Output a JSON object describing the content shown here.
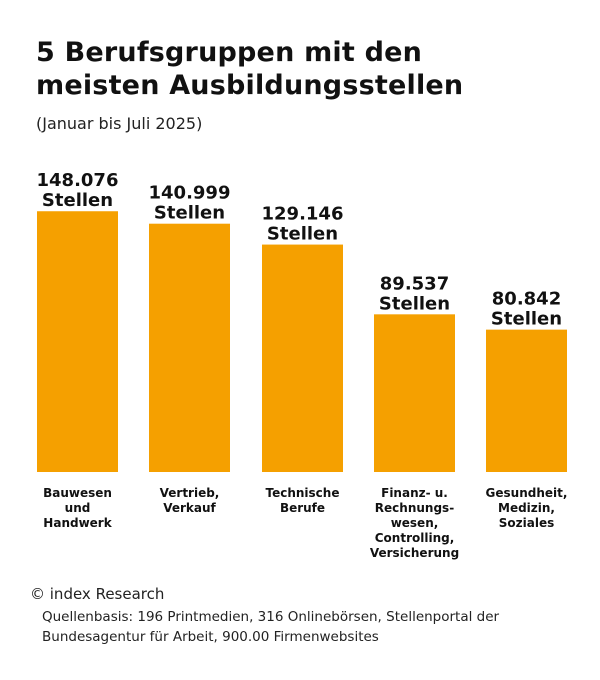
{
  "title_lines": [
    "5 Berufsgruppen mit den",
    "meisten Ausbildungsstellen"
  ],
  "subtitle": "(Januar bis Juli 2025)",
  "bar_color": "#f5a000",
  "chart_data": {
    "type": "bar",
    "title": "5 Berufsgruppen mit den meisten Ausbildungsstellen",
    "subtitle": "(Januar bis Juli 2025)",
    "categories": [
      [
        "Bauwesen",
        "und",
        "Handwerk"
      ],
      [
        "Vertrieb,",
        "Verkauf"
      ],
      [
        "Technische",
        "Berufe"
      ],
      [
        "Finanz- u.",
        "Rechnungs-",
        "wesen,",
        "Controlling,",
        "Versicherung"
      ],
      [
        "Gesundheit,",
        "Medizin,",
        "Soziales"
      ]
    ],
    "values": [
      148076,
      140999,
      129146,
      89537,
      80842
    ],
    "value_labels": [
      "148.076",
      "140.999",
      "129.146",
      "89.537",
      "80.842"
    ],
    "unit_label": "Stellen",
    "ylim": [
      0,
      200000
    ],
    "grid": false,
    "legend": "none"
  },
  "footer": {
    "copyright": "© index Research",
    "source_line1": "Quellenbasis: 196 Printmedien, 316 Onlinebörsen, Stellenportal der",
    "source_line2": "Bundesagentur für Arbeit, 900.00 Firmenwebsites"
  }
}
